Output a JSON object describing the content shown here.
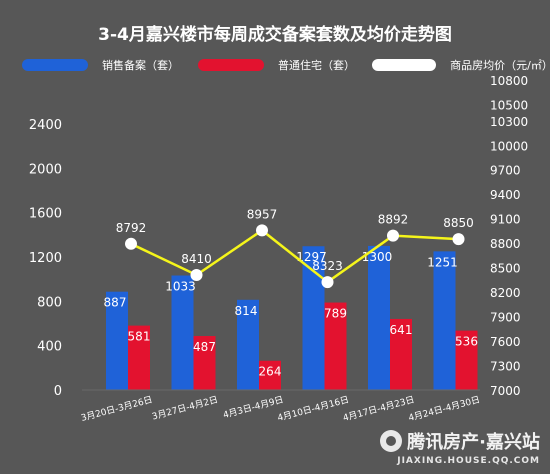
{
  "chart_data": {
    "type": "bar",
    "title": "3-4月嘉兴楼市每周成交备案套数及均价走势图",
    "categories": [
      "3月20日-3月26日",
      "3月27日-4月2日",
      "4月3日-4月9日",
      "4月10日-4月16日",
      "4月17日-4月23日",
      "4月24日-4月30日"
    ],
    "series": [
      {
        "name": "销售备案（套）",
        "kind": "bar",
        "axis": "left",
        "color": "#1f62d8",
        "values": [
          887,
          1033,
          814,
          1297,
          1300,
          1251
        ]
      },
      {
        "name": "普通住宅（套）",
        "kind": "bar",
        "axis": "left",
        "color": "#e3122f",
        "values": [
          581,
          487,
          264,
          789,
          641,
          536
        ]
      },
      {
        "name": "商品房均价（元/㎡）",
        "kind": "line",
        "axis": "right",
        "color": "#f5f51a",
        "marker_color": "#ffffff",
        "values": [
          8792,
          8410,
          8957,
          8323,
          8892,
          8850
        ]
      }
    ],
    "y_left": {
      "ticks": [
        0,
        400,
        800,
        1200,
        1600,
        2000,
        2400
      ],
      "ylim": [
        0,
        2400
      ]
    },
    "y_right": {
      "ticks": [
        7000,
        7300,
        7600,
        7900,
        8200,
        8500,
        8800,
        9100,
        9400,
        9700,
        10000,
        10300,
        10500,
        10800
      ],
      "ylim": [
        7000,
        10800
      ]
    },
    "legend_position": "top",
    "grid": false
  },
  "watermark": {
    "brand": "腾讯房产·嘉兴站",
    "url": "JIAXING.HOUSE.QQ.COM"
  }
}
